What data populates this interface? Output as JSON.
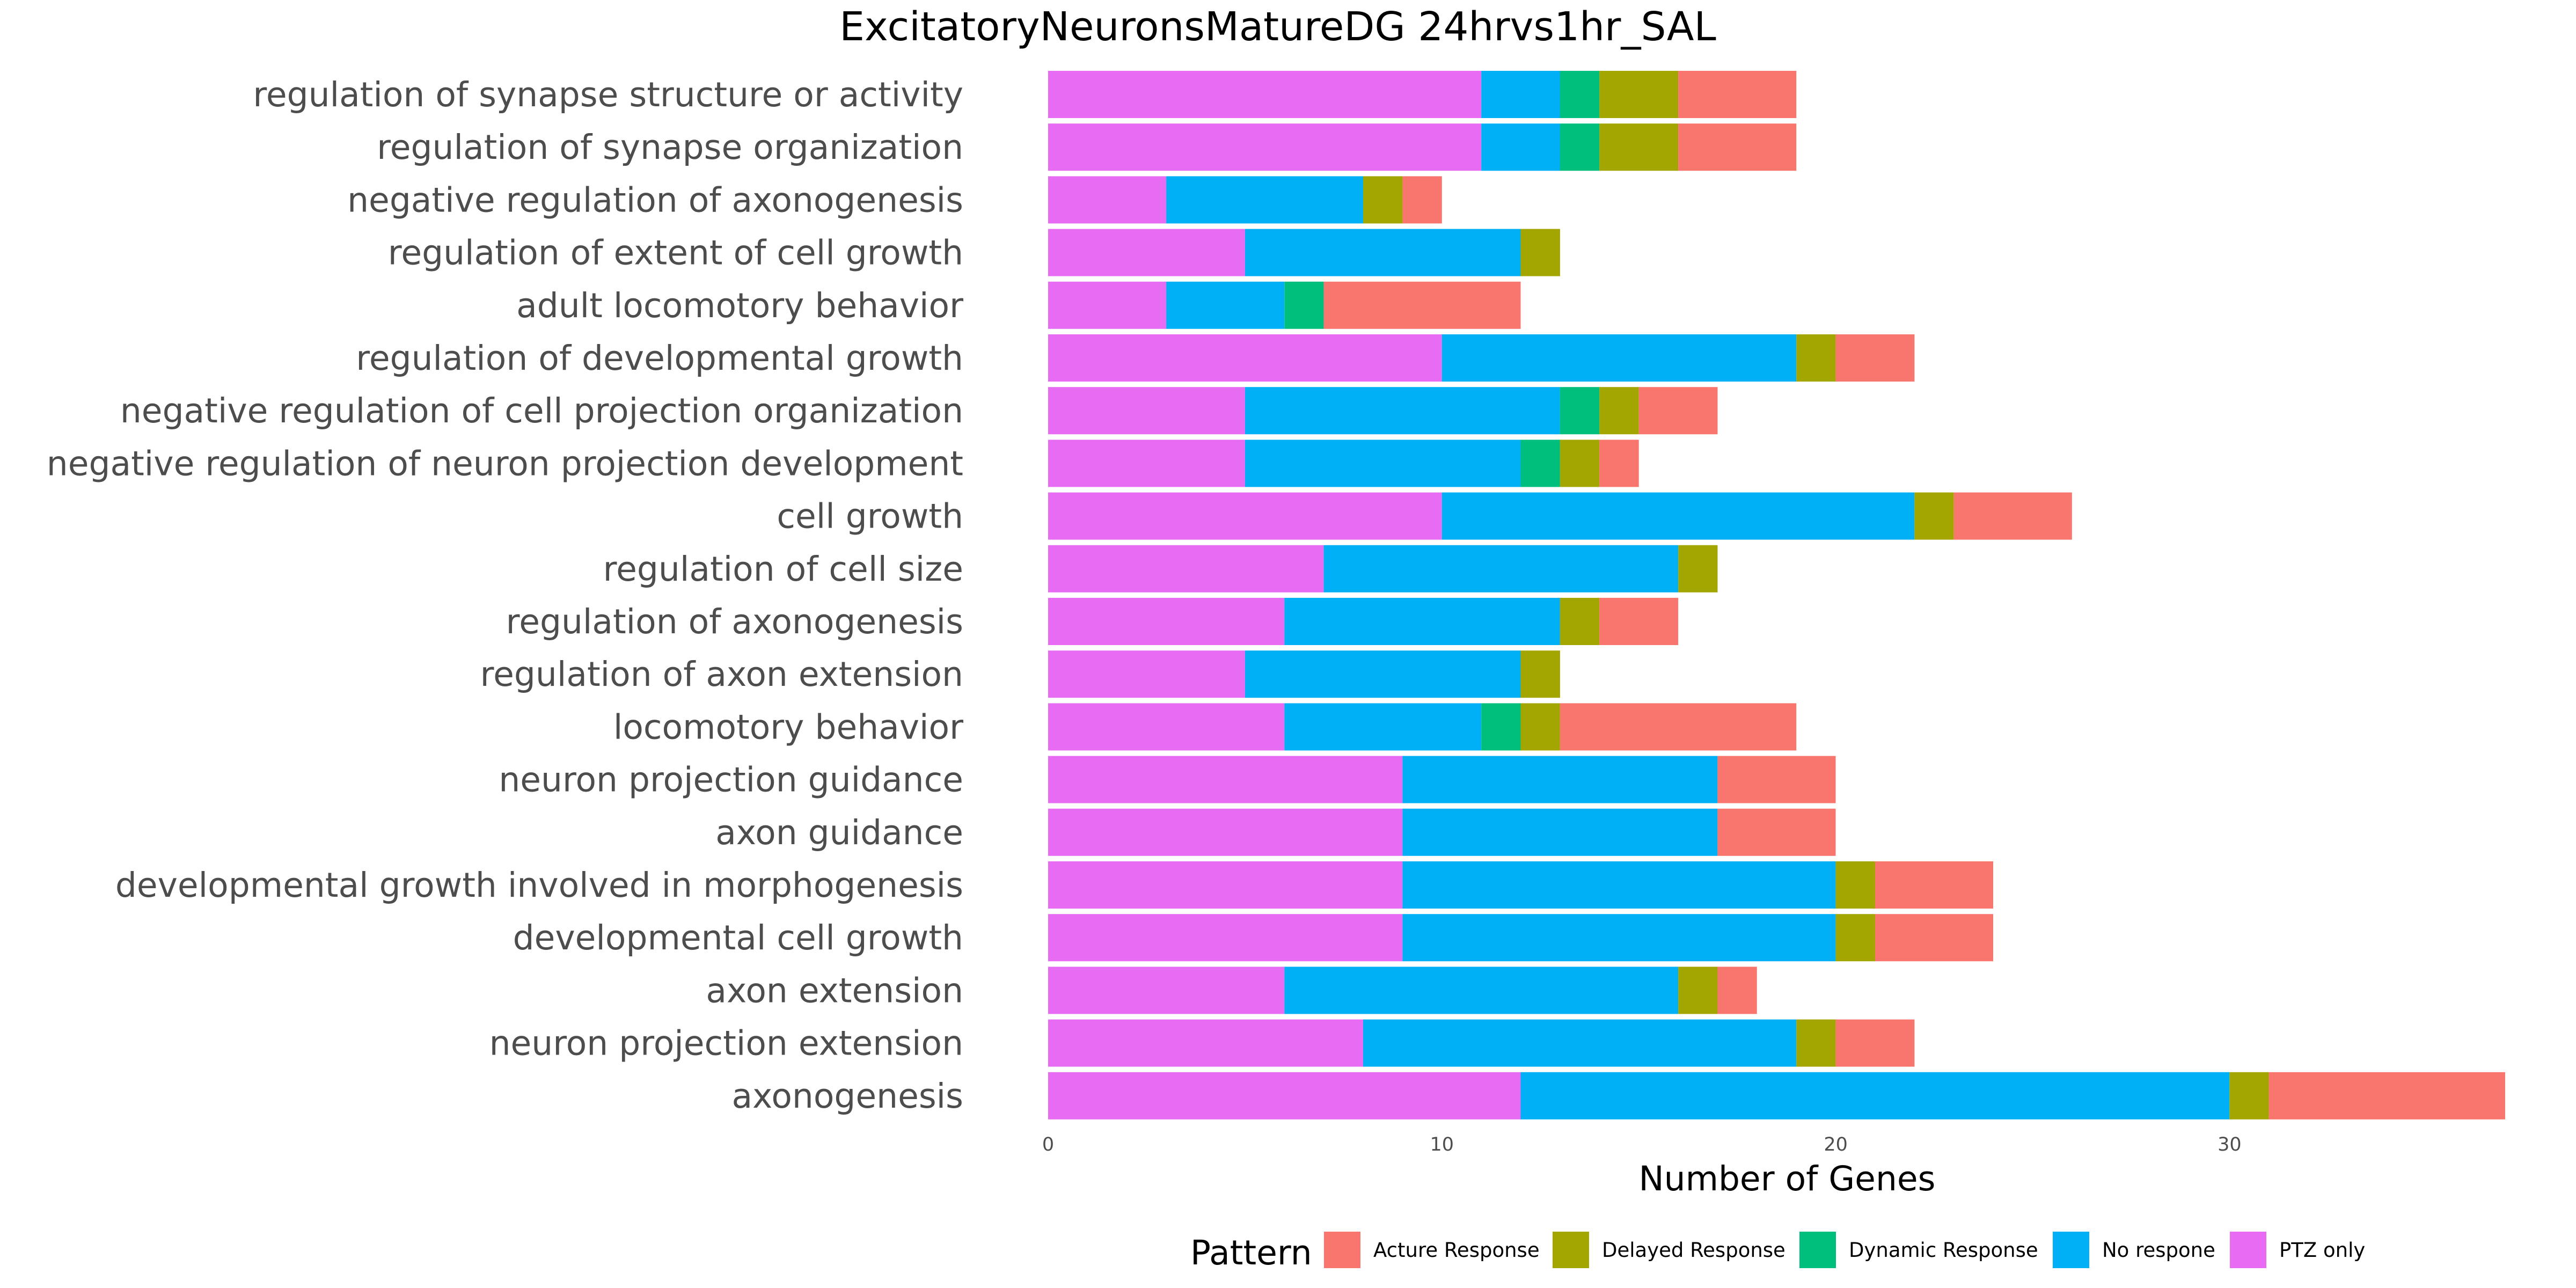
{
  "chart_data": {
    "type": "bar",
    "orientation": "horizontal",
    "stacked": true,
    "title": "ExcitatoryNeuronsMatureDG 24hrvs1hr_SAL",
    "xlabel": "Number of Genes",
    "ylabel": "",
    "xlim": [
      0,
      37
    ],
    "x_ticks": [
      "0",
      "10",
      "20",
      "30"
    ],
    "grid": false,
    "legend": {
      "title": "Pattern",
      "position": "bottom",
      "entries": [
        "Acture Response",
        "Delayed Response",
        "Dynamic Response",
        "No respone",
        "PTZ only"
      ]
    },
    "categories": [
      "regulation of synapse structure or activity",
      "regulation of synapse organization",
      "negative regulation of axonogenesis",
      "regulation of extent of cell growth",
      "adult locomotory behavior",
      "regulation of developmental growth",
      "negative regulation of cell projection organization",
      "negative regulation of neuron projection development",
      "cell growth",
      "regulation of cell size",
      "regulation of axonogenesis",
      "regulation of axon extension",
      "locomotory behavior",
      "neuron projection guidance",
      "axon guidance",
      "developmental growth involved in morphogenesis",
      "developmental cell growth",
      "axon extension",
      "neuron projection extension",
      "axonogenesis"
    ],
    "stack_order": [
      "PTZ only",
      "No respone",
      "Dynamic Response",
      "Delayed Response",
      "Acture Response"
    ],
    "series": [
      {
        "name": "PTZ only",
        "color": "#E76BF3",
        "values": [
          11,
          11,
          3,
          5,
          3,
          10,
          5,
          5,
          10,
          7,
          6,
          5,
          6,
          9,
          9,
          9,
          9,
          6,
          8,
          12
        ]
      },
      {
        "name": "No respone",
        "color": "#00B0F6",
        "values": [
          2,
          2,
          5,
          7,
          3,
          9,
          8,
          7,
          12,
          9,
          7,
          7,
          5,
          8,
          8,
          11,
          11,
          10,
          11,
          18
        ]
      },
      {
        "name": "Dynamic Response",
        "color": "#00BF7D",
        "values": [
          1,
          1,
          0,
          0,
          1,
          0,
          1,
          1,
          0,
          0,
          0,
          0,
          1,
          0,
          0,
          0,
          0,
          0,
          0,
          0
        ]
      },
      {
        "name": "Delayed Response",
        "color": "#A3A500",
        "values": [
          2,
          2,
          1,
          1,
          0,
          1,
          1,
          1,
          1,
          1,
          1,
          1,
          1,
          0,
          0,
          1,
          1,
          1,
          1,
          1
        ]
      },
      {
        "name": "Acture Response",
        "color": "#F8766D",
        "values": [
          3,
          3,
          1,
          0,
          5,
          2,
          2,
          1,
          3,
          0,
          2,
          0,
          6,
          3,
          3,
          3,
          3,
          1,
          2,
          6
        ]
      }
    ]
  }
}
